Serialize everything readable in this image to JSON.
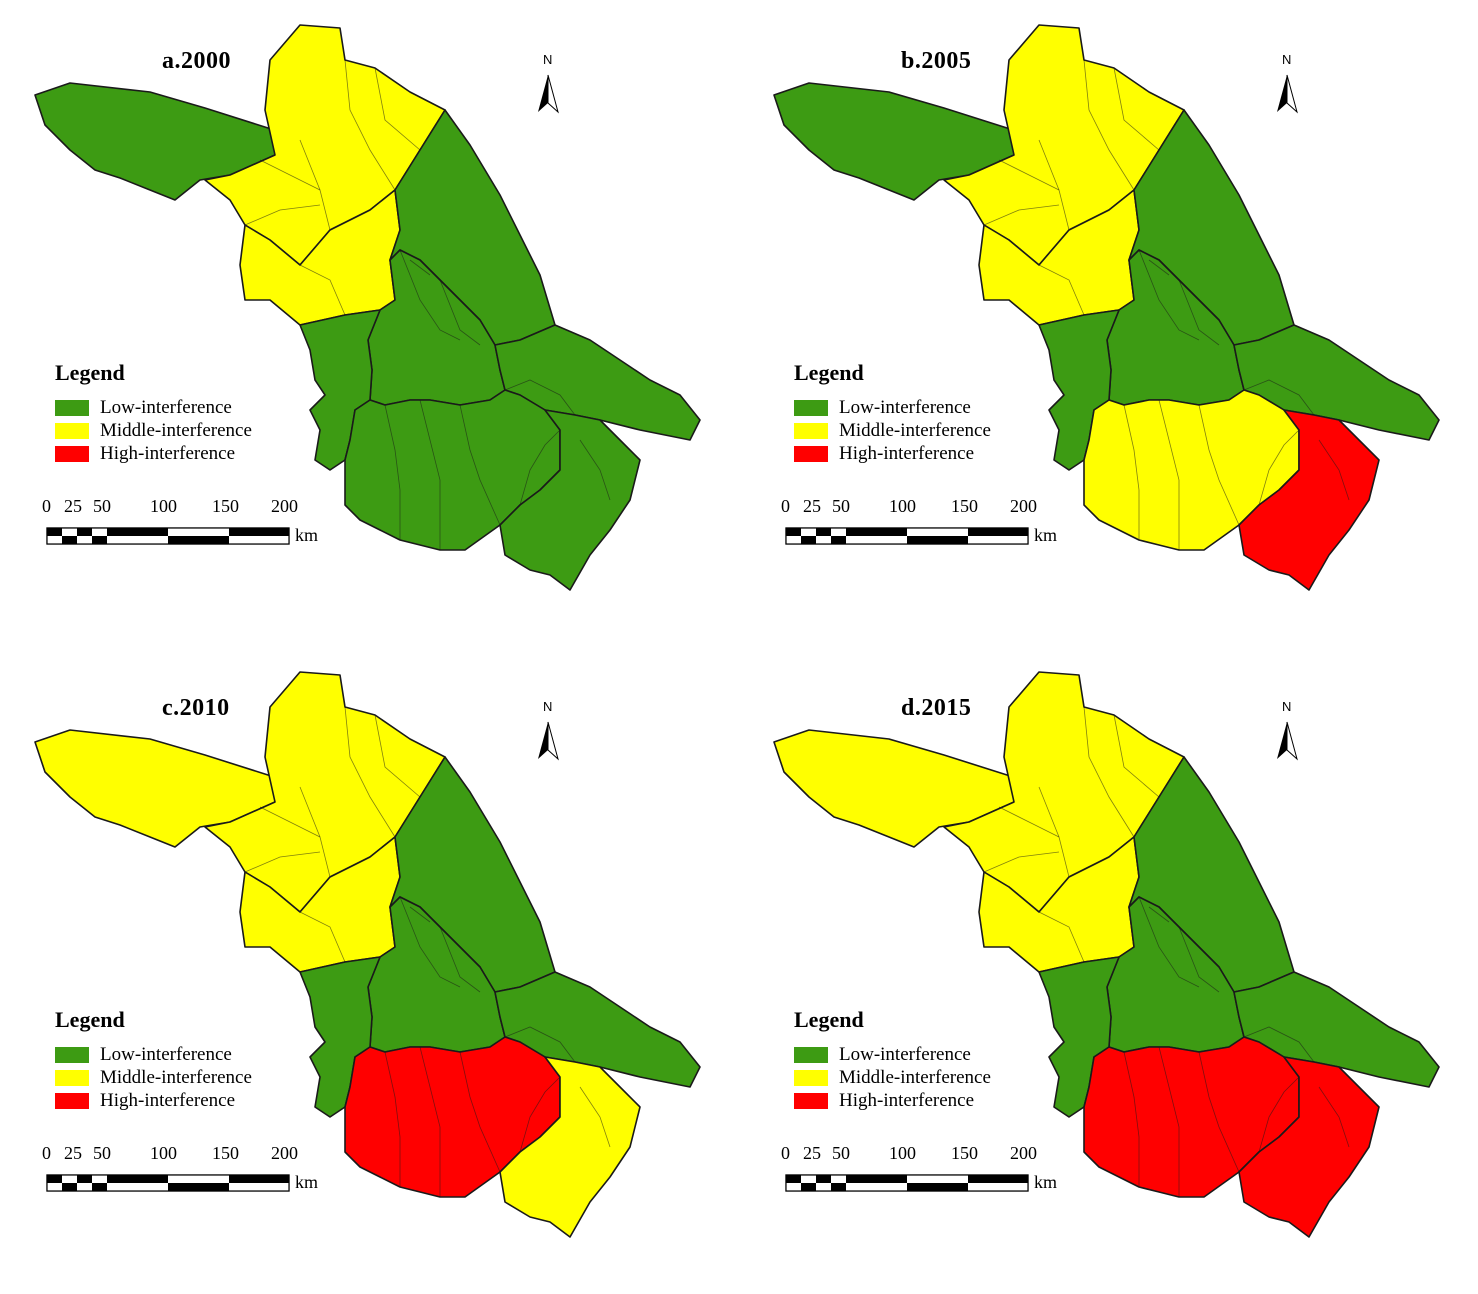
{
  "colors": {
    "low": "#3d9b13",
    "middle": "#ffff00",
    "high": "#ff0000",
    "boundary": "#1a1a1a"
  },
  "legend": {
    "title": "Legend",
    "items": [
      {
        "key": "low",
        "label": "Low-interference"
      },
      {
        "key": "middle",
        "label": "Middle-interference"
      },
      {
        "key": "high",
        "label": "High-interference"
      }
    ]
  },
  "north_label": "N",
  "scale": {
    "ticks": [
      "0",
      "25",
      "50",
      "100",
      "150",
      "200"
    ],
    "unit": "km"
  },
  "panels": [
    {
      "title": "a.2000",
      "classes": {
        "nw": "low",
        "n": "middle",
        "center": "middle",
        "coast": "low",
        "mid": "low",
        "south": "low",
        "se": "low"
      }
    },
    {
      "title": "b.2005",
      "classes": {
        "nw": "low",
        "n": "middle",
        "center": "middle",
        "coast": "low",
        "mid": "low",
        "south": "middle",
        "se": "high"
      }
    },
    {
      "title": "c.2010",
      "classes": {
        "nw": "middle",
        "n": "middle",
        "center": "middle",
        "coast": "low",
        "mid": "low",
        "south": "high",
        "se": "middle"
      }
    },
    {
      "title": "d.2015",
      "classes": {
        "nw": "middle",
        "n": "middle",
        "center": "middle",
        "coast": "low",
        "mid": "low",
        "south": "high",
        "se": "high"
      }
    }
  ]
}
